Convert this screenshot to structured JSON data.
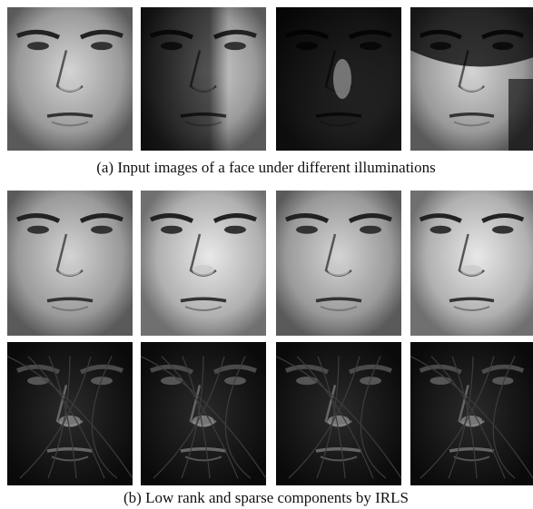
{
  "subfigures": [
    {
      "caption": "(a) Input images of a face under different illuminations"
    },
    {
      "caption": "(b) Low rank and sparse components by IRLS"
    }
  ]
}
